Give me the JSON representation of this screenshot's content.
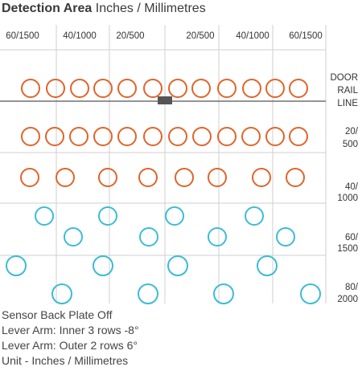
{
  "header": {
    "title_bold": "Detection Area",
    "title_rest": "Inches / Millimetres"
  },
  "axis_labels": [
    "60/1500",
    "40/1000",
    "20/500",
    "20/500",
    "40/1000",
    "60/1500"
  ],
  "row_labels": [
    [
      "DOOR",
      "RAIL",
      "LINE"
    ],
    [
      "20/",
      "500"
    ],
    [
      "40/",
      "1000"
    ],
    [
      "60/",
      "1500"
    ],
    [
      "80/",
      "2000"
    ]
  ],
  "notes": [
    "Sensor Back Plate Off",
    "Lever Arm: Inner 3 rows -8°",
    "Lever Arm: Outer 2 rows 6°",
    "Unit - Inches / Millimetres"
  ],
  "colors": {
    "inner_rows": "#e0642a",
    "outer_rows": "#3bbcd6",
    "sensor": "#555555",
    "grid": "#cfcfcf",
    "rail": "#555555"
  }
}
